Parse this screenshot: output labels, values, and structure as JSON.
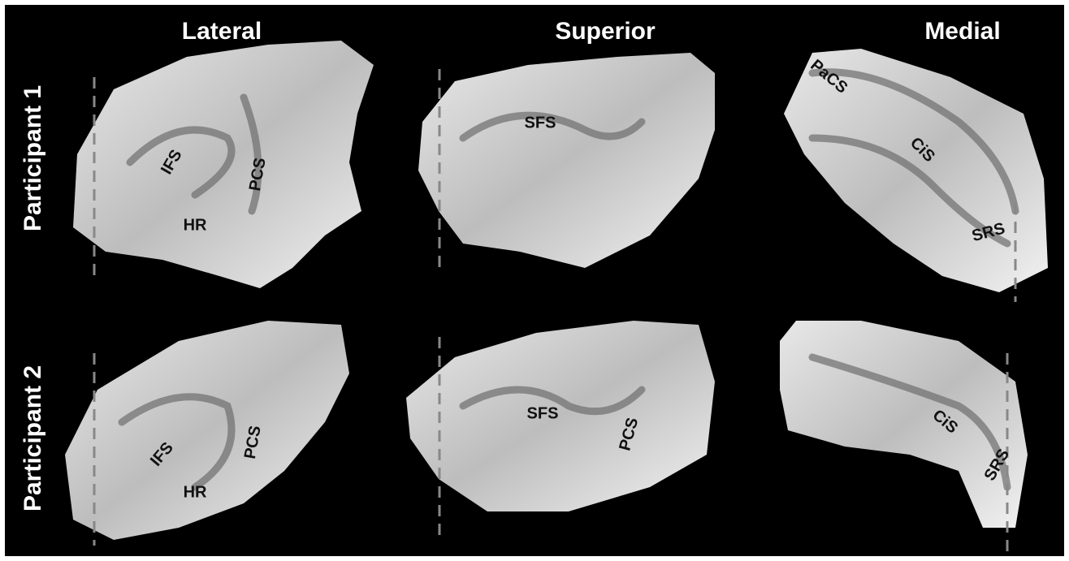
{
  "columns": [
    "Lateral",
    "Superior",
    "Medial"
  ],
  "rows": [
    "Participant 1",
    "Participant 2"
  ],
  "panels": [
    {
      "labels": [
        "IFS",
        "PCS",
        "HR"
      ]
    },
    {
      "labels": [
        "SFS"
      ]
    },
    {
      "labels": [
        "PaCS",
        "CiS",
        "SRS"
      ]
    },
    {
      "labels": [
        "IFS",
        "PCS",
        "HR"
      ]
    },
    {
      "labels": [
        "SFS",
        "PCS"
      ]
    },
    {
      "labels": [
        "CiS",
        "SRS"
      ]
    }
  ]
}
